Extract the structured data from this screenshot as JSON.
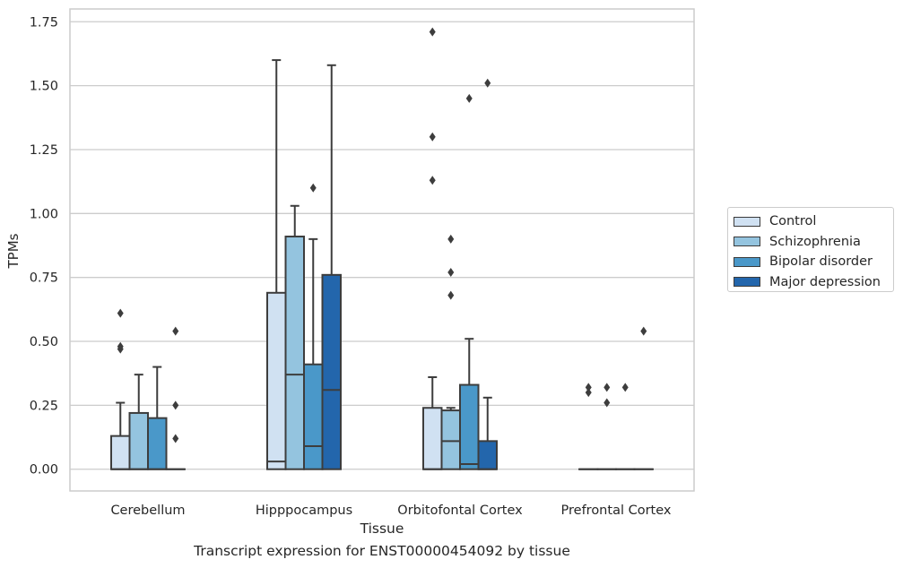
{
  "chart_data": {
    "type": "box",
    "title": "",
    "caption": "Transcript expression for ENST00000454092 by tissue",
    "xlabel": "Tissue",
    "ylabel": "TPMs",
    "ylim": [
      -0.085,
      1.8
    ],
    "yticks": [
      0.0,
      0.25,
      0.5,
      0.75,
      1.0,
      1.25,
      1.5,
      1.75
    ],
    "ytick_labels": [
      "0.00",
      "0.25",
      "0.50",
      "0.75",
      "1.00",
      "1.25",
      "1.50",
      "1.75"
    ],
    "grid": "horizontal",
    "legend_position": "outside-right",
    "categories": [
      "Cerebellum",
      "Hipppocampus",
      "Orbitofontal Cortex",
      "Prefrontal Cortex"
    ],
    "series": [
      {
        "name": "Control",
        "color": "#d0e1f2",
        "boxes": [
          {
            "min": 0.0,
            "q1": 0.0,
            "median": 0.0,
            "q3": 0.13,
            "max": 0.26,
            "outliers": [
              0.61,
              0.48,
              0.47
            ]
          },
          {
            "min": 0.0,
            "q1": 0.0,
            "median": 0.03,
            "q3": 0.69,
            "max": 1.6,
            "outliers": []
          },
          {
            "min": 0.0,
            "q1": 0.0,
            "median": 0.0,
            "q3": 0.24,
            "max": 0.36,
            "outliers": [
              1.71,
              1.3,
              1.13
            ]
          },
          {
            "min": 0.0,
            "q1": 0.0,
            "median": 0.0,
            "q3": 0.0,
            "max": 0.0,
            "outliers": [
              0.32,
              0.3
            ]
          }
        ]
      },
      {
        "name": "Schizophrenia",
        "color": "#94c4df",
        "boxes": [
          {
            "min": 0.0,
            "q1": 0.0,
            "median": 0.0,
            "q3": 0.22,
            "max": 0.37,
            "outliers": []
          },
          {
            "min": 0.0,
            "q1": 0.0,
            "median": 0.37,
            "q3": 0.91,
            "max": 1.03,
            "outliers": []
          },
          {
            "min": 0.0,
            "q1": 0.0,
            "median": 0.11,
            "q3": 0.23,
            "max": 0.24,
            "outliers": [
              0.9,
              0.77,
              0.68
            ]
          },
          {
            "min": 0.0,
            "q1": 0.0,
            "median": 0.0,
            "q3": 0.0,
            "max": 0.0,
            "outliers": [
              0.32,
              0.26
            ]
          }
        ]
      },
      {
        "name": "Bipolar disorder",
        "color": "#4a98c9",
        "boxes": [
          {
            "min": 0.0,
            "q1": 0.0,
            "median": 0.0,
            "q3": 0.2,
            "max": 0.4,
            "outliers": []
          },
          {
            "min": 0.0,
            "q1": 0.0,
            "median": 0.09,
            "q3": 0.41,
            "max": 0.9,
            "outliers": [
              1.1
            ]
          },
          {
            "min": 0.0,
            "q1": 0.0,
            "median": 0.02,
            "q3": 0.33,
            "max": 0.51,
            "outliers": [
              1.45
            ]
          },
          {
            "min": 0.0,
            "q1": 0.0,
            "median": 0.0,
            "q3": 0.0,
            "max": 0.0,
            "outliers": [
              0.32
            ]
          }
        ]
      },
      {
        "name": "Major depression",
        "color": "#2366ac",
        "boxes": [
          {
            "min": 0.0,
            "q1": 0.0,
            "median": 0.0,
            "q3": 0.0,
            "max": 0.0,
            "outliers": [
              0.54,
              0.25,
              0.12
            ]
          },
          {
            "min": 0.0,
            "q1": 0.0,
            "median": 0.31,
            "q3": 0.76,
            "max": 1.58,
            "outliers": []
          },
          {
            "min": 0.0,
            "q1": 0.0,
            "median": 0.0,
            "q3": 0.11,
            "max": 0.28,
            "outliers": [
              1.51
            ]
          },
          {
            "min": 0.0,
            "q1": 0.0,
            "median": 0.0,
            "q3": 0.0,
            "max": 0.0,
            "outliers": [
              0.54
            ]
          }
        ]
      }
    ]
  }
}
